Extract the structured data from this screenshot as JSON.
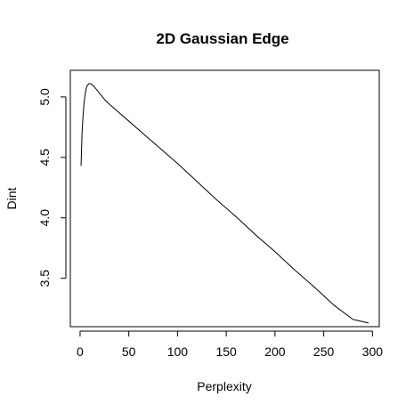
{
  "chart_data": {
    "type": "line",
    "title": "2D Gaussian Edge",
    "xlabel": "Perplexity",
    "ylabel": "Dint",
    "xlim": [
      -10,
      307
    ],
    "ylim": [
      3.1,
      5.22
    ],
    "x_ticks": [
      0,
      50,
      100,
      150,
      200,
      250,
      300
    ],
    "x_tick_labels": [
      "0",
      "50",
      "100",
      "150",
      "200",
      "250",
      "300"
    ],
    "y_ticks": [
      3.5,
      4.0,
      4.5,
      5.0
    ],
    "y_tick_labels": [
      "3.5",
      "4.0",
      "4.5",
      "5.0"
    ],
    "grid": false,
    "legend": "none",
    "line_color": "#000000",
    "series": [
      {
        "x": [
          1,
          2,
          3,
          4,
          5,
          6,
          7,
          8,
          9,
          10,
          11,
          12,
          14,
          16,
          18,
          20,
          25,
          30,
          40,
          50,
          60,
          70,
          80,
          90,
          100,
          120,
          140,
          160,
          180,
          200,
          220,
          240,
          260,
          280,
          296
        ],
        "y": [
          4.43,
          4.7,
          4.84,
          4.94,
          5.01,
          5.06,
          5.09,
          5.1,
          5.11,
          5.11,
          5.11,
          5.1,
          5.09,
          5.07,
          5.05,
          5.03,
          4.98,
          4.94,
          4.87,
          4.8,
          4.73,
          4.66,
          4.59,
          4.52,
          4.45,
          4.3,
          4.15,
          4.01,
          3.86,
          3.72,
          3.57,
          3.43,
          3.28,
          3.16,
          3.13
        ]
      }
    ]
  }
}
